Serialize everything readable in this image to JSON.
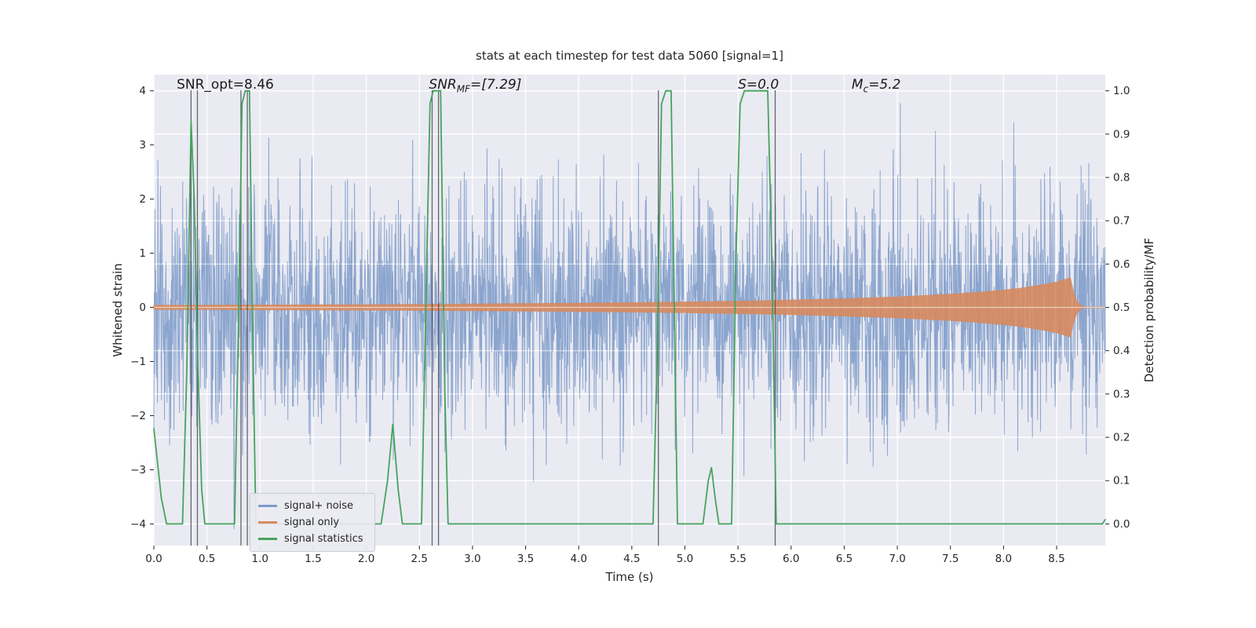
{
  "chart_data": {
    "type": "line",
    "title": "stats at each timestep for test data 5060 [signal=1]",
    "xlabel": "Time (s)",
    "ylabel_left": "Whitened strain",
    "ylabel_right": "Detection probability/MF",
    "xlim": [
      0,
      8.958
    ],
    "ylim_left": [
      -4.4,
      4.3
    ],
    "ylim_right": [
      -0.05,
      1.04
    ],
    "grid": true,
    "legend_position": "lower left",
    "x_ticks": [
      0,
      0.5,
      1,
      1.5,
      2,
      2.5,
      3,
      3.5,
      4,
      4.5,
      5,
      5.5,
      6,
      6.5,
      7,
      7.5,
      8,
      8.5
    ],
    "y_ticks_left": [
      -4,
      -3,
      -2,
      -1,
      0,
      1,
      2,
      3,
      4
    ],
    "y_ticks_right": [
      0,
      0.1,
      0.2,
      0.3,
      0.4,
      0.5,
      0.6,
      0.7,
      0.8,
      0.9,
      1
    ],
    "plot_bg": "#eaeaf2",
    "grid_color": "#ffffff",
    "annotations": [
      {
        "pre": "SNR_opt=8.46",
        "sub": "",
        "post": "",
        "x": 0.215,
        "style": "plain"
      },
      {
        "pre": "SNR",
        "sub": "MF",
        "post": "=[7.29]",
        "x": 2.59,
        "style": "italic"
      },
      {
        "pre": "S",
        "sub": "",
        "post": "=0.0",
        "x": 5.5,
        "style": "italic"
      },
      {
        "pre": "M",
        "sub": "c",
        "post": "=5.2",
        "x": 6.57,
        "style": "italic"
      }
    ],
    "legend": [
      {
        "label": "signal+ noise",
        "color": "#7d9bc8"
      },
      {
        "label": "signal only",
        "color": "#d88a5f"
      },
      {
        "label": "signal statistics",
        "color": "#47a35c"
      }
    ],
    "series": {
      "signal_plus_noise": {
        "name": "signal+ noise",
        "axis": "left",
        "kind": "noise",
        "color": "#7d9bc8",
        "opacity": 0.88,
        "seed": 5060,
        "n": 2600,
        "std": 1.1,
        "max_abs": 4.1
      },
      "signal_only": {
        "name": "signal only",
        "axis": "left",
        "kind": "envelope",
        "color": "#d88a5f",
        "opacity": 0.9,
        "envelope": [
          [
            0,
            0.04
          ],
          [
            0.5,
            0.042
          ],
          [
            1,
            0.045
          ],
          [
            1.5,
            0.048
          ],
          [
            2,
            0.052
          ],
          [
            2.5,
            0.057
          ],
          [
            3,
            0.063
          ],
          [
            3.5,
            0.07
          ],
          [
            4,
            0.078
          ],
          [
            4.5,
            0.088
          ],
          [
            5,
            0.1
          ],
          [
            5.5,
            0.115
          ],
          [
            6,
            0.135
          ],
          [
            6.5,
            0.16
          ],
          [
            7,
            0.195
          ],
          [
            7.5,
            0.245
          ],
          [
            7.8,
            0.285
          ],
          [
            8,
            0.32
          ],
          [
            8.2,
            0.365
          ],
          [
            8.4,
            0.43
          ],
          [
            8.5,
            0.47
          ],
          [
            8.55,
            0.5
          ],
          [
            8.6,
            0.53
          ],
          [
            8.63,
            0.55
          ],
          [
            8.66,
            0.28
          ],
          [
            8.69,
            0.12
          ],
          [
            8.72,
            0.05
          ],
          [
            8.76,
            0.01
          ],
          [
            8.958,
            0.008
          ]
        ]
      },
      "signal_statistics": {
        "name": "signal statistics",
        "axis": "right",
        "kind": "line",
        "color": "#47a35c",
        "width": 1.8,
        "points": [
          [
            0,
            0.22
          ],
          [
            0.07,
            0.06
          ],
          [
            0.12,
            0.0
          ],
          [
            0.27,
            0.0
          ],
          [
            0.31,
            0.35
          ],
          [
            0.35,
            0.93
          ],
          [
            0.38,
            0.75
          ],
          [
            0.41,
            0.4
          ],
          [
            0.45,
            0.08
          ],
          [
            0.48,
            0.0
          ],
          [
            0.76,
            0.0
          ],
          [
            0.8,
            0.5
          ],
          [
            0.83,
            0.97
          ],
          [
            0.86,
            1.0
          ],
          [
            0.9,
            1.0
          ],
          [
            0.93,
            0.45
          ],
          [
            0.96,
            0.0
          ],
          [
            2.14,
            0.0
          ],
          [
            2.2,
            0.1
          ],
          [
            2.25,
            0.23
          ],
          [
            2.3,
            0.08
          ],
          [
            2.34,
            0.0
          ],
          [
            2.52,
            0.0
          ],
          [
            2.56,
            0.5
          ],
          [
            2.6,
            0.97
          ],
          [
            2.63,
            1.0
          ],
          [
            2.7,
            1.0
          ],
          [
            2.74,
            0.3
          ],
          [
            2.77,
            0.0
          ],
          [
            4.7,
            0.0
          ],
          [
            4.74,
            0.4
          ],
          [
            4.78,
            0.97
          ],
          [
            4.82,
            1.0
          ],
          [
            4.87,
            1.0
          ],
          [
            4.9,
            0.5
          ],
          [
            4.93,
            0.0
          ],
          [
            5.17,
            0.0
          ],
          [
            5.22,
            0.1
          ],
          [
            5.25,
            0.13
          ],
          [
            5.29,
            0.05
          ],
          [
            5.32,
            0.0
          ],
          [
            5.44,
            0.0
          ],
          [
            5.48,
            0.6
          ],
          [
            5.52,
            0.97
          ],
          [
            5.56,
            1.0
          ],
          [
            5.78,
            1.0
          ],
          [
            5.82,
            0.6
          ],
          [
            5.86,
            0.0
          ],
          [
            8.8,
            0.0
          ],
          [
            8.93,
            0.0
          ],
          [
            8.958,
            0.01
          ]
        ]
      }
    },
    "vlines": {
      "color": "#4d4d57",
      "x": [
        0.35,
        0.41,
        0.82,
        0.88,
        2.62,
        2.68,
        4.75,
        5.85
      ]
    }
  }
}
